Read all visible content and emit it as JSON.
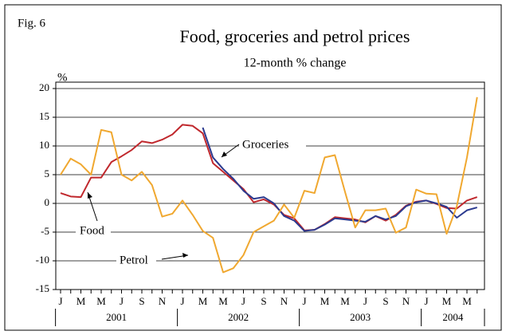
{
  "chart_data": {
    "type": "line",
    "figure_label": "Fig. 6",
    "title": "Food, groceries and petrol prices",
    "subtitle": "12-month % change",
    "y_label": "%",
    "categories": [
      "J",
      null,
      "M",
      null,
      "M",
      null,
      "J",
      null,
      "S",
      null,
      "N",
      null,
      "J",
      null,
      "M",
      null,
      "M",
      null,
      "J",
      null,
      "S",
      null,
      "N",
      null,
      "J",
      null,
      "M",
      null,
      "M",
      null,
      "J",
      null,
      "S",
      null,
      "N",
      null,
      "J",
      null,
      "M",
      null,
      "M",
      null
    ],
    "years": [
      "2001",
      "2002",
      "2003",
      "2004"
    ],
    "ylim": [
      -15,
      20
    ],
    "yticks": [
      -15,
      -10,
      -5,
      0,
      5,
      10,
      15,
      20
    ],
    "grid": true,
    "series": [
      {
        "name": "Food",
        "color": "#c0282d",
        "values": [
          1.8,
          1.2,
          1.1,
          4.5,
          4.5,
          7.2,
          8.2,
          9.3,
          10.8,
          10.5,
          11.1,
          12.0,
          13.7,
          13.5,
          12.2,
          7.0,
          5.5,
          4.0,
          2.5,
          0.2,
          0.7,
          -0.2,
          -2.0,
          -2.6,
          -4.7,
          -4.6,
          -3.6,
          -2.4,
          -2.6,
          -2.8,
          -3.3,
          -2.2,
          -3.0,
          -2.0,
          -0.4,
          0.3,
          0.5,
          -0.1,
          -0.8,
          -0.9,
          0.5,
          1.1
        ]
      },
      {
        "name": "Groceries",
        "color": "#2b3a8f",
        "values": [
          null,
          null,
          null,
          null,
          null,
          null,
          null,
          null,
          null,
          null,
          null,
          null,
          null,
          null,
          13.2,
          8.0,
          6.0,
          4.3,
          2.2,
          0.8,
          1.1,
          0.0,
          -2.2,
          -3.0,
          -4.8,
          -4.6,
          -3.7,
          -2.6,
          -2.8,
          -3.0,
          -3.2,
          -2.2,
          -2.8,
          -2.2,
          -0.5,
          0.2,
          0.5,
          0.0,
          -0.6,
          -2.5,
          -1.2,
          -0.7
        ]
      },
      {
        "name": "Petrol",
        "color": "#f0a830",
        "values": [
          5.0,
          7.8,
          6.8,
          5.0,
          12.8,
          12.4,
          5.0,
          4.0,
          5.5,
          3.2,
          -2.3,
          -1.8,
          0.5,
          -2.0,
          -4.8,
          -6.0,
          -12.0,
          -11.3,
          -9.0,
          -5.0,
          -4.0,
          -3.0,
          -0.2,
          -2.5,
          2.2,
          1.8,
          8.0,
          8.4,
          2.0,
          -4.2,
          -1.2,
          -1.2,
          -0.9,
          -5.1,
          -4.2,
          2.4,
          1.7,
          1.6,
          -5.3,
          -0.5,
          8.0,
          18.5
        ]
      }
    ]
  }
}
